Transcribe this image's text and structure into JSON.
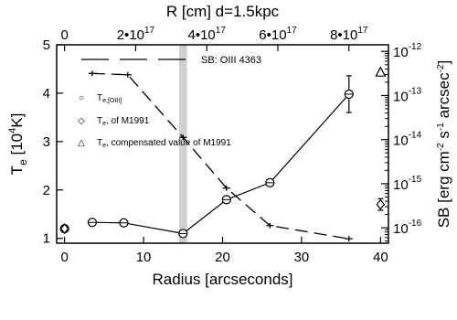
{
  "chart_data": {
    "type": "line",
    "xlabel": "Radius [arcseconds]",
    "ylabel": "T",
    "ylabel_sub": "e",
    "ylabel_tail": " [10",
    "ylabel_sup": "4",
    "ylabel_end": "K]",
    "xlim": [
      -1,
      41
    ],
    "ylim": [
      0.9,
      5.0
    ],
    "xticks": [
      "0",
      "10",
      "20",
      "30",
      "40"
    ],
    "yticks": [
      "1",
      "2",
      "3",
      "4",
      "5"
    ],
    "top_axis": {
      "label": "R [cm]   d=1.5kpc",
      "ticks": [
        "0",
        "2•10",
        "4•10",
        "6•10",
        "8•10"
      ],
      "exponents": [
        "",
        "17",
        "17",
        "17",
        "17"
      ],
      "tick_positions": [
        0,
        2e+17,
        4e+17,
        6e+17,
        8e+17
      ]
    },
    "right_axis": {
      "label": "SB [erg cm",
      "label_parts": [
        "SB [erg cm",
        "-2",
        " s",
        "-1",
        " arcsec",
        "-2",
        "]"
      ],
      "scale": "log",
      "ticks": [
        "10",
        "10",
        "10",
        "10",
        "10"
      ],
      "exponents": [
        "-12",
        "-13",
        "-14",
        "-15",
        "-16"
      ],
      "range_log": [
        -16.35,
        -11.85
      ]
    },
    "grid": false,
    "shaded_band": {
      "x": [
        14.5,
        15.5
      ],
      "color": "#d0d0d0"
    },
    "series": [
      {
        "name": "T",
        "name_sub": "e,[OIII]",
        "marker": "circle",
        "line": "solid",
        "x": [
          0,
          3.5,
          7.5,
          15,
          20.5,
          26,
          36
        ],
        "y": [
          1.2,
          1.33,
          1.32,
          1.1,
          1.8,
          2.15,
          3.98
        ],
        "yerr": [
          0.04,
          0.04,
          0.04,
          0.05,
          0.06,
          0.05,
          0.38
        ],
        "connected_from_index": 1
      },
      {
        "name": "T",
        "name_sub": "e",
        "name_tail": ", of M1991",
        "marker": "diamond",
        "line": "none",
        "x": [
          0,
          40
        ],
        "y": [
          1.2,
          1.7
        ],
        "yerr": [
          0.0,
          0.12
        ]
      },
      {
        "name": "T",
        "name_sub": "e",
        "name_tail": ", compensated value of M1991",
        "marker": "triangle",
        "line": "none",
        "x": [
          40
        ],
        "y": [
          4.43
        ],
        "yerr": [
          0.0
        ]
      },
      {
        "name": "SB: OIII 4363",
        "marker": "none",
        "line": "dashed",
        "axis": "right",
        "x": [
          3.5,
          8,
          15,
          20.5,
          26,
          36
        ],
        "log_y": [
          -12.5,
          -12.53,
          -13.95,
          -15.1,
          -15.95,
          -16.25
        ]
      }
    ],
    "legend": "top-left",
    "legend_symbols": [
      "○",
      "◇",
      "△"
    ],
    "colors": {
      "line": "#000000",
      "band": "#d0d0d0"
    }
  }
}
